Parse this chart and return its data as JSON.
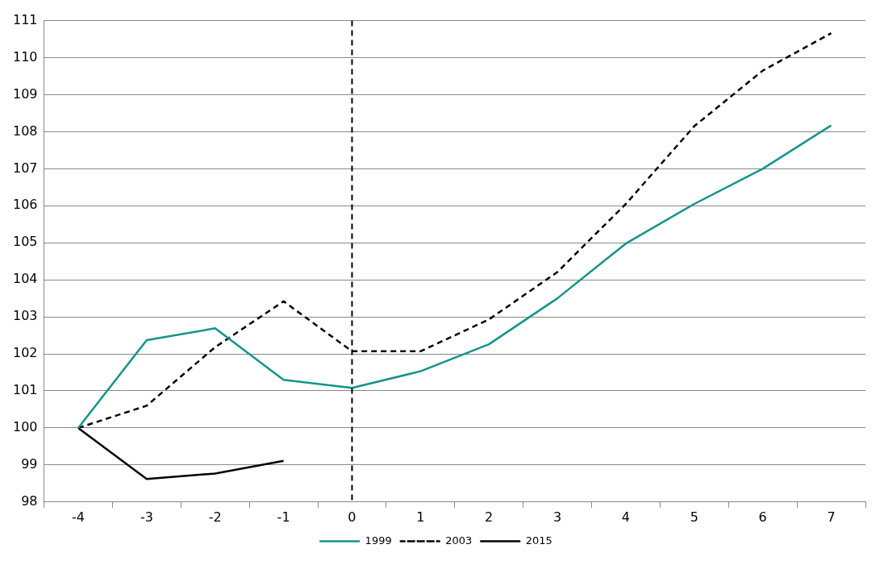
{
  "chart_data": {
    "type": "line",
    "categories": [
      "-4",
      "-3",
      "-2",
      "-1",
      "0",
      "1",
      "2",
      "3",
      "4",
      "5",
      "6",
      "7"
    ],
    "series": [
      {
        "name": "1999",
        "color": "#13938a",
        "line_style": "solid",
        "values": [
          100,
          102.37,
          102.69,
          101.3,
          101.08,
          101.53,
          102.26,
          103.5,
          104.98,
          106.05,
          107.0,
          108.17
        ]
      },
      {
        "name": "2003",
        "color": "#000000",
        "line_style": "dashed",
        "values": [
          100,
          100.6,
          102.18,
          103.42,
          102.07,
          102.07,
          102.93,
          104.21,
          106.05,
          108.15,
          109.65,
          110.66
        ]
      },
      {
        "name": "2015",
        "color": "#000000",
        "line_style": "solid",
        "values": [
          100,
          98.62,
          98.77,
          99.11,
          null,
          null,
          null,
          null,
          null,
          null,
          null,
          null
        ]
      }
    ],
    "ylim": [
      98,
      111
    ],
    "yticks": [
      98,
      99,
      100,
      101,
      102,
      103,
      104,
      105,
      106,
      107,
      108,
      109,
      110,
      111
    ],
    "grid": "y",
    "legend": "bottom",
    "marker": "none",
    "ref_lines": [
      {
        "axis": "x",
        "value": "0",
        "color": "#000000",
        "line_style": "dashed"
      }
    ]
  }
}
